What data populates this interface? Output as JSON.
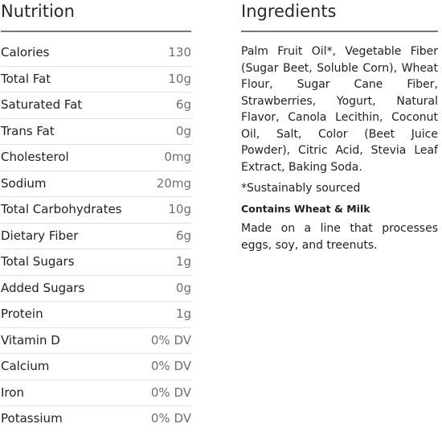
{
  "nutrition": {
    "title": "Nutrition",
    "rows": [
      {
        "label": "Calories",
        "value": "130"
      },
      {
        "label": "Total Fat",
        "value": "10g"
      },
      {
        "label": "Saturated Fat",
        "value": "6g"
      },
      {
        "label": "Trans Fat",
        "value": "0g"
      },
      {
        "label": "Cholesterol",
        "value": "0mg"
      },
      {
        "label": "Sodium",
        "value": "20mg"
      },
      {
        "label": "Total Carbohydrates",
        "value": "10g"
      },
      {
        "label": "Dietary Fiber",
        "value": "6g"
      },
      {
        "label": "Total Sugars",
        "value": "1g"
      },
      {
        "label": "Added Sugars",
        "value": "0g"
      },
      {
        "label": "Protein",
        "value": "1g"
      },
      {
        "label": "Vitamin D",
        "value": "0% DV"
      },
      {
        "label": "Calcium",
        "value": "0% DV"
      },
      {
        "label": "Iron",
        "value": "0% DV"
      },
      {
        "label": "Potassium",
        "value": "0% DV"
      }
    ]
  },
  "ingredients": {
    "title": "Ingredients",
    "list": "Palm Fruit Oil*, Vegetable Fiber (Sugar Beet, Soluble Corn), Wheat Flour, Sugar Cane Fiber, Strawberries, Yogurt, Natural Flavor, Canola Lecithin, Coconut Oil, Salt, Color (Beet Juice Powder), Citric Acid, Stevia Leaf Extract, Baking Soda.",
    "footnote": "*Sustainably sourced",
    "allergens": "Contains Wheat & Milk",
    "facility": "Made on a line that processes eggs, soy, and treenuts."
  },
  "colors": {
    "accent_rule": "#5f7e8f",
    "row_divider": "#dde3e8",
    "value_text": "#6f6f6f"
  }
}
